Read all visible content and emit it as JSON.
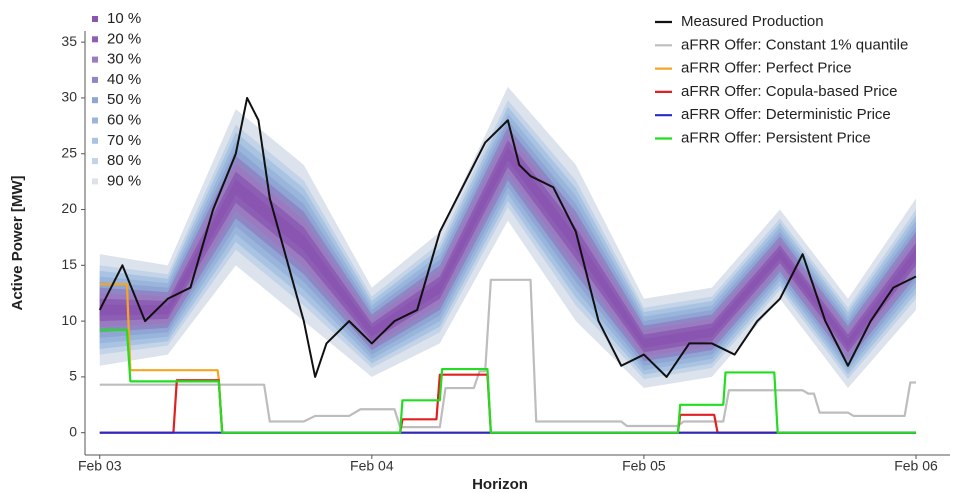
{
  "chart_data": {
    "type": "line",
    "xlabel": "Horizon",
    "ylabel": "Active Power [MW]",
    "xlim": [
      -1.3,
      75
    ],
    "xticks": [
      {
        "value": 0,
        "label": "Feb 03"
      },
      {
        "value": 24,
        "label": "Feb 04"
      },
      {
        "value": 48,
        "label": "Feb 05"
      },
      {
        "value": 72,
        "label": "Feb 06"
      }
    ],
    "ylim": [
      -2,
      36
    ],
    "yticks": [
      0,
      5,
      10,
      15,
      20,
      25,
      30,
      35
    ],
    "grid": false,
    "bands": {
      "x": [
        0,
        6,
        12,
        18,
        24,
        30,
        36,
        42,
        48,
        54,
        60,
        66,
        72
      ],
      "series": [
        {
          "name": "90 %",
          "color": "#dde3ec",
          "lower": [
            6,
            7,
            15,
            10,
            5,
            8,
            19,
            10,
            4,
            5,
            12,
            4,
            11
          ],
          "upper": [
            16,
            15,
            29,
            24,
            13,
            18,
            31,
            24,
            12,
            13,
            20,
            12,
            21
          ]
        },
        {
          "name": "80 %",
          "color": "#c3d3e8",
          "lower": [
            7,
            7.8,
            16.4,
            11.4,
            5.8,
            9,
            20.2,
            11.4,
            4.8,
            5.8,
            12.8,
            4.8,
            12
          ],
          "upper": [
            15,
            14.2,
            27.6,
            22.6,
            12.2,
            17,
            29.8,
            22.6,
            11.2,
            12.2,
            19.2,
            11.2,
            20
          ]
        },
        {
          "name": "70 %",
          "color": "#a8c4e2",
          "lower": [
            7.5,
            8.2,
            17.1,
            12.1,
            6.2,
            9.5,
            20.8,
            12.1,
            5.2,
            6.2,
            13.2,
            5.2,
            12.5
          ],
          "upper": [
            14.5,
            13.8,
            26.9,
            21.9,
            11.8,
            16.5,
            29.2,
            21.9,
            10.8,
            11.8,
            18.8,
            10.8,
            19.5
          ]
        },
        {
          "name": "60 %",
          "color": "#9ab5dc",
          "lower": [
            8,
            8.6,
            17.8,
            12.8,
            6.6,
            10,
            21.4,
            12.8,
            5.6,
            6.6,
            13.6,
            5.6,
            13
          ],
          "upper": [
            14,
            13.4,
            26.2,
            21.2,
            11.4,
            16,
            28.6,
            21.2,
            10.4,
            11.4,
            18.4,
            10.4,
            19
          ]
        },
        {
          "name": "50 %",
          "color": "#8fa6d4",
          "lower": [
            8.5,
            9,
            18.5,
            13.5,
            7,
            10.5,
            22,
            13.5,
            6,
            7,
            14,
            6,
            13.5
          ],
          "upper": [
            13.5,
            13,
            25.5,
            20.5,
            11,
            15.5,
            28,
            20.5,
            10,
            11,
            18,
            10,
            18.5
          ]
        },
        {
          "name": "40 %",
          "color": "#8f86c6",
          "lower": [
            9,
            9.4,
            19.2,
            14.2,
            7.4,
            11,
            22.6,
            14.2,
            6.4,
            7.4,
            14.4,
            6.4,
            14
          ],
          "upper": [
            13,
            12.6,
            24.8,
            19.8,
            10.6,
            15,
            27.4,
            19.8,
            9.6,
            10.6,
            17.6,
            9.6,
            18
          ]
        },
        {
          "name": "30 %",
          "color": "#9a7bc0",
          "lower": [
            9.5,
            9.8,
            19.9,
            14.9,
            7.8,
            11.5,
            23.2,
            14.9,
            6.8,
            7.8,
            14.8,
            6.8,
            14.5
          ],
          "upper": [
            12.5,
            12.2,
            24.1,
            19.1,
            10.2,
            14.5,
            26.8,
            19.1,
            9.2,
            10.2,
            17.2,
            9.2,
            17.5
          ]
        },
        {
          "name": "20 %",
          "color": "#8c5fb4",
          "lower": [
            10,
            10.2,
            20.6,
            15.6,
            8.2,
            12,
            23.8,
            15.6,
            7.2,
            8.2,
            15.2,
            7.2,
            15
          ],
          "upper": [
            12,
            11.8,
            23.4,
            18.4,
            9.8,
            14,
            26.2,
            18.4,
            8.8,
            9.8,
            16.8,
            8.8,
            17
          ]
        },
        {
          "name": "10 %",
          "color": "#8a55b0",
          "lower": [
            10.5,
            10.6,
            21.3,
            16.3,
            8.6,
            12.5,
            24.4,
            16.3,
            7.6,
            8.6,
            15.6,
            7.6,
            15.5
          ],
          "upper": [
            11.5,
            11.4,
            22.7,
            17.7,
            9.4,
            13.5,
            25.6,
            17.7,
            8.4,
            9.4,
            16.4,
            8.4,
            16.5
          ]
        }
      ]
    },
    "series": [
      {
        "name": "Measured Production",
        "color": "#111111",
        "x": [
          0,
          2,
          4,
          6,
          8,
          10,
          12,
          13,
          14,
          15,
          18,
          19,
          20,
          22,
          24,
          26,
          28,
          30,
          32,
          34,
          36,
          37,
          38,
          40,
          42,
          44,
          46,
          48,
          50,
          52,
          54,
          56,
          58,
          60,
          62,
          64,
          66,
          68,
          70,
          72
        ],
        "values": [
          11,
          15,
          10,
          12,
          13,
          20,
          25,
          30,
          28,
          21,
          10,
          5,
          8,
          10,
          8,
          10,
          11,
          18,
          22,
          26,
          28,
          24,
          23,
          22,
          18,
          10,
          6,
          7,
          5,
          8,
          8,
          7,
          10,
          12,
          16,
          10,
          6,
          10,
          13,
          14
        ]
      },
      {
        "name": "aFRR Offer: Constant 1% quantile",
        "color": "#bdbdbd",
        "x": [
          0,
          14.5,
          15,
          18,
          19,
          22,
          23,
          26,
          26.5,
          30,
          30.5,
          33,
          33.5,
          34,
          34.5,
          38,
          38.5,
          46,
          46.5,
          51,
          51.5,
          55,
          55.5,
          62,
          62.5,
          63,
          63.5,
          66,
          66.5,
          71,
          71.5,
          72
        ],
        "values": [
          4.3,
          4.3,
          1,
          1,
          1.5,
          1.5,
          2.1,
          2.1,
          0.5,
          0.5,
          4,
          4,
          5.5,
          5.5,
          13.7,
          13.7,
          1,
          1,
          0.6,
          0.6,
          1,
          1,
          3.8,
          3.8,
          3.5,
          3.5,
          1.8,
          1.8,
          1.5,
          1.5,
          4.5,
          4.5
        ]
      },
      {
        "name": "aFRR Offer: Perfect Price",
        "color": "#f5a623",
        "x": [
          0,
          2.4,
          2.7,
          10.4,
          10.5,
          10.8,
          72
        ],
        "values": [
          13.3,
          13.3,
          5.6,
          5.6,
          4.8,
          0,
          0
        ]
      },
      {
        "name": "aFRR Offer: Copula-based Price",
        "color": "#e02020",
        "x": [
          0,
          6.5,
          6.8,
          10.5,
          10.8,
          26.5,
          26.7,
          29.7,
          30,
          34.2,
          34.5,
          51,
          51.2,
          54.2,
          54.5,
          72
        ],
        "values": [
          0,
          0,
          4.7,
          4.7,
          0,
          0,
          1.2,
          1.2,
          5.2,
          5.2,
          0,
          0,
          1.6,
          1.6,
          0,
          0
        ]
      },
      {
        "name": "aFRR Offer: Deterministic Price",
        "color": "#2a2ac8",
        "x": [
          0,
          72
        ],
        "values": [
          0,
          0
        ]
      },
      {
        "name": "aFRR Offer: Persistent Price",
        "color": "#22dd22",
        "x": [
          0,
          2.4,
          2.7,
          10.5,
          10.8,
          26.5,
          26.7,
          30,
          30.2,
          34.2,
          34.5,
          51,
          51.2,
          55,
          55.2,
          59.5,
          59.8,
          72
        ],
        "values": [
          9.2,
          9.2,
          4.6,
          4.6,
          0,
          0,
          2.9,
          2.9,
          5.7,
          5.7,
          0,
          0,
          2.5,
          2.5,
          5.4,
          5.4,
          0,
          0
        ]
      }
    ]
  }
}
